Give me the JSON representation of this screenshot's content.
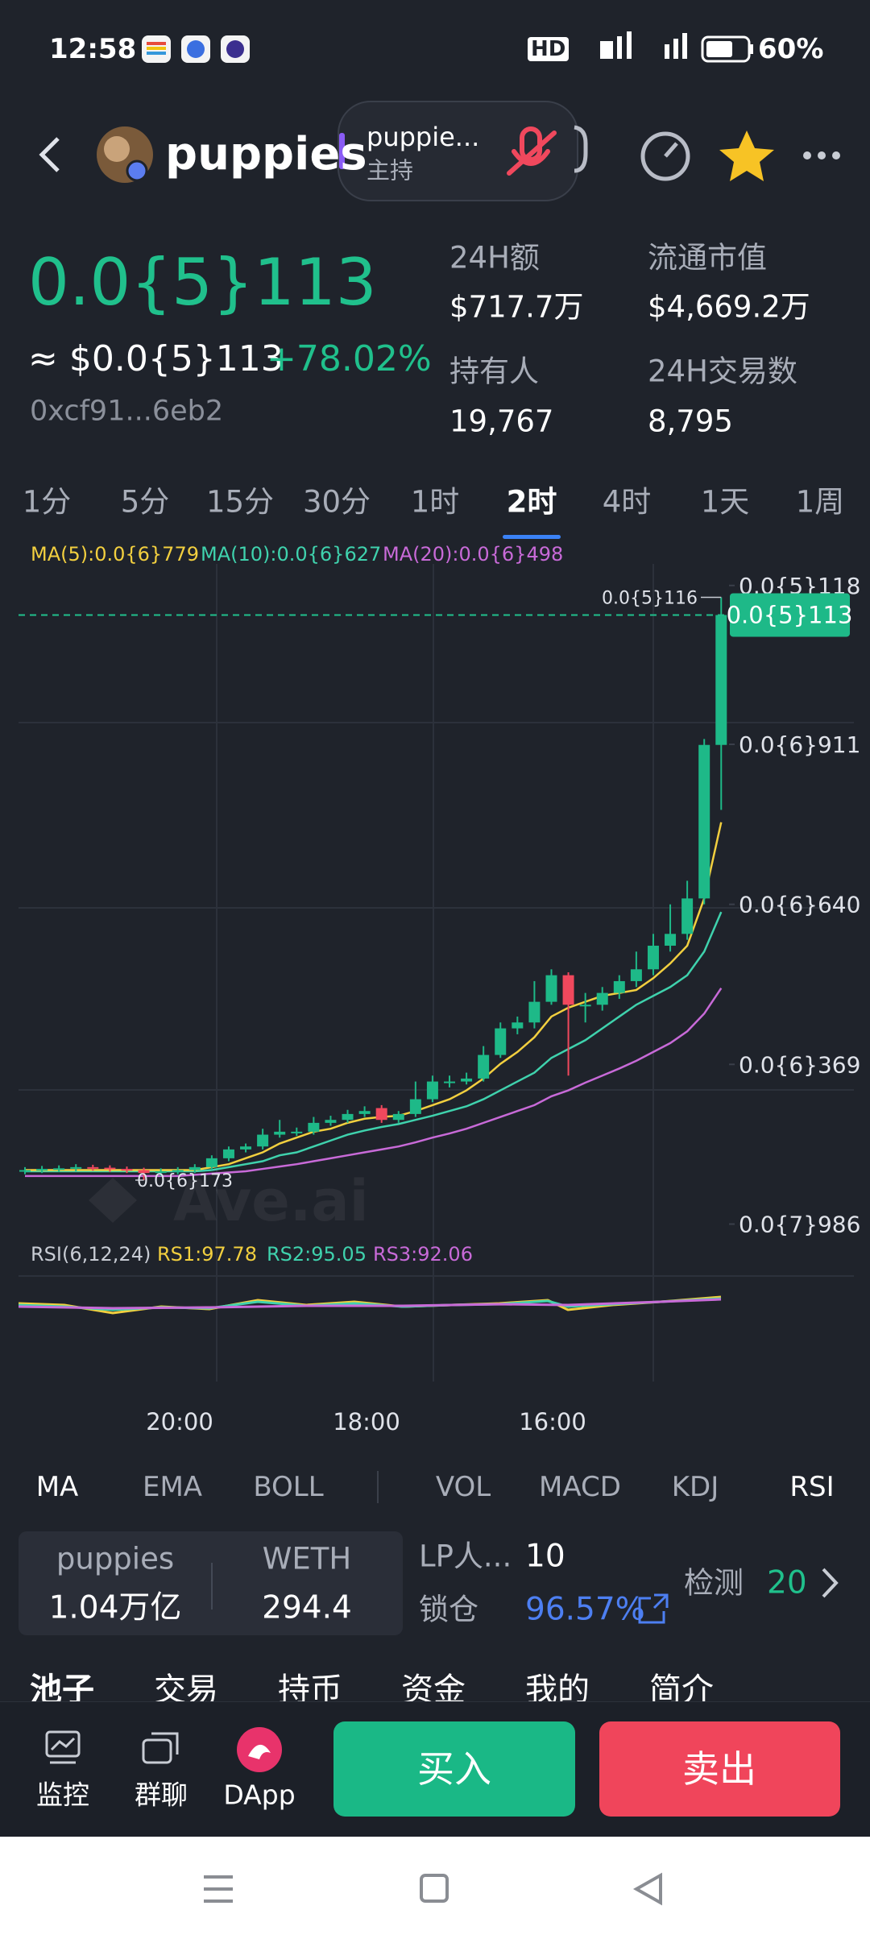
{
  "status_bar": {
    "time": "12:58",
    "network": "HD",
    "battery": "60%"
  },
  "header": {
    "token": "puppies",
    "live": {
      "title": "puppie...",
      "role": "主持"
    }
  },
  "price": {
    "main": "0.0{5}113",
    "usd": "≈ $0.0{5}113",
    "change": "+78.02%",
    "address": "0xcf91...6eb2"
  },
  "stats": [
    {
      "label": "24H额",
      "value": "$717.7万"
    },
    {
      "label": "流通市值",
      "value": "$4,669.2万"
    },
    {
      "label": "持有人",
      "value": "19,767"
    },
    {
      "label": "24H交易数",
      "value": "8,795"
    }
  ],
  "timeframes": [
    "1分",
    "5分",
    "15分",
    "30分",
    "1时",
    "2时",
    "4时",
    "1天",
    "1周"
  ],
  "active_timeframe": 5,
  "chart": {
    "type": "candlestick",
    "ma_legend": [
      {
        "text": "MA(5):0.0{6}779",
        "color": "#f2cf3f"
      },
      {
        "text": "MA(10):0.0{6}627",
        "color": "#3fd2ad"
      },
      {
        "text": "MA(20):0.0{6}498",
        "color": "#c86ad8"
      }
    ],
    "ylim": [
      7.34e-08,
      1.207e-06
    ],
    "yticks": [
      {
        "value": 1.18e-06,
        "label": "0.0{5}118"
      },
      {
        "value": 9.11e-07,
        "label": "0.0{6}911"
      },
      {
        "value": 6.4e-07,
        "label": "0.0{6}640"
      },
      {
        "value": 3.69e-07,
        "label": "0.0{6}369"
      },
      {
        "value": 9.86e-08,
        "label": "0.0{7}986"
      }
    ],
    "up_color": "#1eb988",
    "down_color": "#f0485d",
    "candles": [
      [
        1.88e-07,
        1.95e-07,
        1.83e-07,
        1.9e-07
      ],
      [
        1.9e-07,
        1.97e-07,
        1.85e-07,
        1.92e-07
      ],
      [
        1.92e-07,
        1.98e-07,
        1.87e-07,
        1.93e-07
      ],
      [
        1.93e-07,
        2e-07,
        1.88e-07,
        1.95e-07
      ],
      [
        1.95e-07,
        1.99e-07,
        1.89e-07,
        1.94e-07
      ],
      [
        1.94e-07,
        1.98e-07,
        1.87e-07,
        1.92e-07
      ],
      [
        1.92e-07,
        1.96e-07,
        1.85e-07,
        1.9e-07
      ],
      [
        1.9e-07,
        1.94e-07,
        1.73e-07,
        1.85e-07
      ],
      [
        1.85e-07,
        1.93e-07,
        1.8e-07,
        1.88e-07
      ],
      [
        1.88e-07,
        1.95e-07,
        1.83e-07,
        1.9e-07
      ],
      [
        1.9e-07,
        2e-07,
        1.85e-07,
        1.95e-07
      ],
      [
        1.95e-07,
        2.15e-07,
        1.9e-07,
        2.1e-07
      ],
      [
        2.1e-07,
        2.3e-07,
        2.05e-07,
        2.25e-07
      ],
      [
        2.25e-07,
        2.35e-07,
        2.2e-07,
        2.3e-07
      ],
      [
        2.3e-07,
        2.6e-07,
        2.25e-07,
        2.5e-07
      ],
      [
        2.5e-07,
        2.75e-07,
        2.45e-07,
        2.55e-07
      ],
      [
        2.55e-07,
        2.62e-07,
        2.48e-07,
        2.55e-07
      ],
      [
        2.55e-07,
        2.8e-07,
        2.5e-07,
        2.7e-07
      ],
      [
        2.7e-07,
        2.82e-07,
        2.65e-07,
        2.75e-07
      ],
      [
        2.75e-07,
        2.92e-07,
        2.7e-07,
        2.85e-07
      ],
      [
        2.85e-07,
        2.98e-07,
        2.8e-07,
        2.9e-07
      ],
      [
        2.95e-07,
        3e-07,
        2.7e-07,
        2.75e-07
      ],
      [
        2.75e-07,
        2.9e-07,
        2.7e-07,
        2.85e-07
      ],
      [
        2.85e-07,
        3.4e-07,
        2.8e-07,
        3.1e-07
      ],
      [
        3.1e-07,
        3.5e-07,
        3.05e-07,
        3.4e-07
      ],
      [
        3.4e-07,
        3.5e-07,
        3.3e-07,
        3.4e-07
      ],
      [
        3.4e-07,
        3.55e-07,
        3.35e-07,
        3.45e-07
      ],
      [
        3.45e-07,
        4e-07,
        3.4e-07,
        3.85e-07
      ],
      [
        3.85e-07,
        4.4e-07,
        3.8e-07,
        4.3e-07
      ],
      [
        4.3e-07,
        4.5e-07,
        4.2e-07,
        4.4e-07
      ],
      [
        4.4e-07,
        5.1e-07,
        4.3e-07,
        4.75e-07
      ],
      [
        4.75e-07,
        5.3e-07,
        4.7e-07,
        5.2e-07
      ],
      [
        5.2e-07,
        5.25e-07,
        3.5e-07,
        4.7e-07
      ],
      [
        4.7e-07,
        4.9e-07,
        4.4e-07,
        4.7e-07
      ],
      [
        4.7e-07,
        5e-07,
        4.6e-07,
        4.9e-07
      ],
      [
        4.9e-07,
        5.2e-07,
        4.8e-07,
        5.1e-07
      ],
      [
        5.1e-07,
        5.6e-07,
        5e-07,
        5.3e-07
      ],
      [
        5.3e-07,
        5.9e-07,
        5.2e-07,
        5.7e-07
      ],
      [
        5.7e-07,
        6.4e-07,
        5.6e-07,
        5.9e-07
      ],
      [
        5.9e-07,
        6.8e-07,
        5.8e-07,
        6.5e-07
      ],
      [
        6.5e-07,
        9.2e-07,
        6.4e-07,
        9.1e-07
      ],
      [
        9.1e-07,
        1.16e-06,
        8e-07,
        1.13e-06
      ]
    ],
    "ma5": [
      1.9e-07,
      1.9e-07,
      1.9e-07,
      1.9e-07,
      1.9e-07,
      1.9e-07,
      1.9e-07,
      1.9e-07,
      1.9e-07,
      1.9e-07,
      1.9e-07,
      1.95e-07,
      2e-07,
      2.1e-07,
      2.2e-07,
      2.35e-07,
      2.45e-07,
      2.55e-07,
      2.6e-07,
      2.7e-07,
      2.77e-07,
      2.8e-07,
      2.82e-07,
      2.9e-07,
      3e-07,
      3.1e-07,
      3.25e-07,
      3.45e-07,
      3.7e-07,
      3.9e-07,
      4.15e-07,
      4.5e-07,
      4.65e-07,
      4.75e-07,
      4.85e-07,
      4.9e-07,
      4.95e-07,
      5.15e-07,
      5.4e-07,
      5.7e-07,
      6.5e-07,
      7.79e-07
    ],
    "ma10": [
      1.88e-07,
      1.88e-07,
      1.88e-07,
      1.88e-07,
      1.88e-07,
      1.88e-07,
      1.88e-07,
      1.88e-07,
      1.88e-07,
      1.88e-07,
      1.88e-07,
      1.9e-07,
      1.95e-07,
      2e-07,
      2.05e-07,
      2.15e-07,
      2.2e-07,
      2.3e-07,
      2.4e-07,
      2.5e-07,
      2.57e-07,
      2.63e-07,
      2.68e-07,
      2.75e-07,
      2.82e-07,
      2.9e-07,
      2.98e-07,
      3.1e-07,
      3.25e-07,
      3.4e-07,
      3.55e-07,
      3.8e-07,
      3.95e-07,
      4.1e-07,
      4.3e-07,
      4.5e-07,
      4.7e-07,
      4.85e-07,
      5e-07,
      5.2e-07,
      5.6e-07,
      6.27e-07
    ],
    "ma20": [
      1.8e-07,
      1.8e-07,
      1.8e-07,
      1.8e-07,
      1.8e-07,
      1.8e-07,
      1.8e-07,
      1.8e-07,
      1.8e-07,
      1.8e-07,
      1.82e-07,
      1.84e-07,
      1.86e-07,
      1.88e-07,
      1.92e-07,
      1.96e-07,
      2e-07,
      2.05e-07,
      2.1e-07,
      2.15e-07,
      2.2e-07,
      2.25e-07,
      2.3e-07,
      2.37e-07,
      2.45e-07,
      2.52e-07,
      2.6e-07,
      2.7e-07,
      2.8e-07,
      2.9e-07,
      3e-07,
      3.15e-07,
      3.25e-07,
      3.38e-07,
      3.5e-07,
      3.62e-07,
      3.75e-07,
      3.9e-07,
      4.05e-07,
      4.25e-07,
      4.55e-07,
      4.98e-07
    ],
    "last_price": {
      "value": 1.13e-06,
      "label": "0.0{5}113"
    },
    "high_label": {
      "value": 1.16e-06,
      "label": "0.0{5}116"
    },
    "low_label": {
      "value": 1.73e-07,
      "label": "0.0{6}173"
    },
    "watermark": "Ave.ai",
    "rsi_legend": [
      {
        "text": "RSI(6,12,24)",
        "color": "#c8ccd4"
      },
      {
        "text": "RS1:97.78",
        "color": "#f2cf3f"
      },
      {
        "text": "RS2:95.05",
        "color": "#3fd2ad"
      },
      {
        "text": "RS3:92.06",
        "color": "#c86ad8"
      }
    ],
    "time_labels": [
      "20:00",
      "18:00",
      "16:00"
    ]
  },
  "indicators": [
    "MA",
    "EMA",
    "BOLL",
    "VOL",
    "MACD",
    "KDJ",
    "RSI"
  ],
  "pool": {
    "token_a": {
      "name": "puppies",
      "amount": "1.04万亿"
    },
    "token_b": {
      "name": "WETH",
      "amount": "294.4"
    },
    "lp_label": "LP人...",
    "lp_value": "10",
    "lock_label": "锁仓",
    "lock_value": "96.57%",
    "check_label": "检测",
    "check_value": "20"
  },
  "tabs": [
    "池子",
    "交易",
    "持币",
    "资金",
    "我的",
    "简介"
  ],
  "bottom_nav": {
    "items": [
      "监控",
      "群聊",
      "DApp"
    ],
    "buy": "买入",
    "sell": "卖出"
  }
}
